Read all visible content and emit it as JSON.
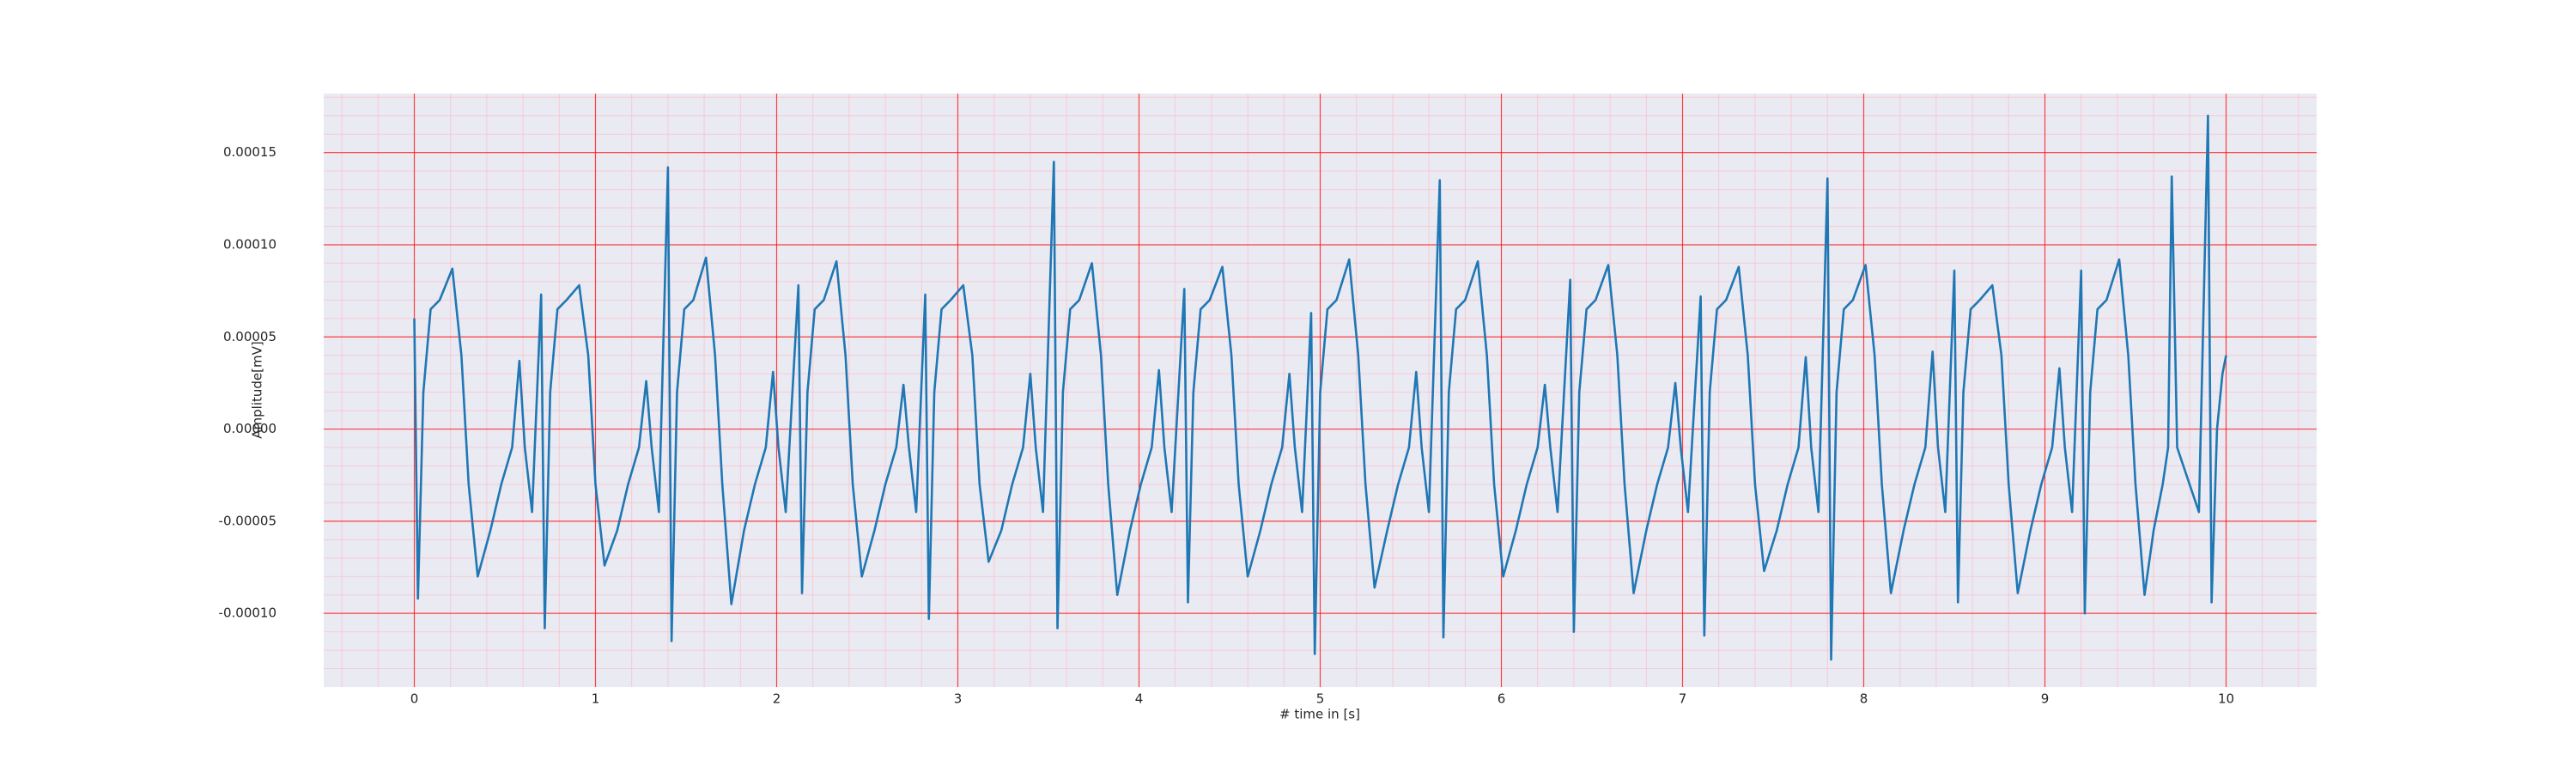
{
  "chart_data": {
    "type": "line",
    "xlabel": "# time in [s]",
    "ylabel": "Amplitude[mV]",
    "xlim": [
      -0.5,
      10.5
    ],
    "ylim": [
      -0.00014,
      0.000182
    ],
    "xticks": [
      0,
      1,
      2,
      3,
      4,
      5,
      6,
      7,
      8,
      9,
      10
    ],
    "yticks": [
      {
        "value": -0.0001,
        "label": "-0.00010"
      },
      {
        "value": -5e-05,
        "label": "-0.00005"
      },
      {
        "value": 0,
        "label": "0.00000"
      },
      {
        "value": 5e-05,
        "label": "0.00005"
      },
      {
        "value": 0.0001,
        "label": "0.00010"
      },
      {
        "value": 0.00015,
        "label": "0.00015"
      }
    ],
    "grid": true,
    "grid_color": "#ff0000",
    "minor_grid": true,
    "minor_grid_color": "#ffb6c1",
    "minor_xstep": 0.2,
    "minor_ystep": 1e-05,
    "background": "#eaeaf2",
    "series": [
      {
        "color": "#1f77b4",
        "x": [
          0,
          0.02,
          0.05,
          0.09,
          0.14,
          0.21,
          0.26,
          0.3,
          0.35,
          0.42,
          0.48,
          0.54,
          0.58,
          0.61,
          0.65,
          0.7,
          0.72,
          0.75,
          0.79,
          0.84,
          0.91,
          0.96,
          1.0,
          1.05,
          1.12,
          1.18,
          1.24,
          1.28,
          1.31,
          1.35,
          1.4,
          1.42,
          1.45,
          1.49,
          1.54,
          1.61,
          1.66,
          1.7,
          1.75,
          1.82,
          1.88,
          1.94,
          1.98,
          2.01,
          2.05,
          2.12,
          2.14,
          2.17,
          2.21,
          2.26,
          2.33,
          2.38,
          2.42,
          2.47,
          2.54,
          2.6,
          2.66,
          2.7,
          2.73,
          2.77,
          2.82,
          2.84,
          2.87,
          2.91,
          2.96,
          3.03,
          3.08,
          3.12,
          3.17,
          3.24,
          3.3,
          3.36,
          3.4,
          3.43,
          3.47,
          3.53,
          3.55,
          3.58,
          3.62,
          3.67,
          3.74,
          3.79,
          3.83,
          3.88,
          3.95,
          4.01,
          4.07,
          4.11,
          4.14,
          4.18,
          4.25,
          4.27,
          4.3,
          4.34,
          4.39,
          4.46,
          4.51,
          4.55,
          4.6,
          4.67,
          4.73,
          4.79,
          4.83,
          4.86,
          4.9,
          4.95,
          4.97,
          5.0,
          5.04,
          5.09,
          5.16,
          5.21,
          5.25,
          5.3,
          5.37,
          5.43,
          5.49,
          5.53,
          5.56,
          5.6,
          5.66,
          5.68,
          5.71,
          5.75,
          5.8,
          5.87,
          5.92,
          5.96,
          6.01,
          6.08,
          6.14,
          6.2,
          6.24,
          6.27,
          6.31,
          6.38,
          6.4,
          6.43,
          6.47,
          6.52,
          6.59,
          6.64,
          6.68,
          6.73,
          6.8,
          6.86,
          6.92,
          6.96,
          6.99,
          7.03,
          7.1,
          7.12,
          7.15,
          7.19,
          7.24,
          7.31,
          7.36,
          7.4,
          7.45,
          7.52,
          7.58,
          7.64,
          7.68,
          7.71,
          7.75,
          7.8,
          7.82,
          7.85,
          7.89,
          7.94,
          8.01,
          8.06,
          8.1,
          8.15,
          8.22,
          8.28,
          8.34,
          8.38,
          8.41,
          8.45,
          8.5,
          8.52,
          8.55,
          8.59,
          8.64,
          8.71,
          8.76,
          8.8,
          8.85,
          8.92,
          8.98,
          9.04,
          9.08,
          9.11,
          9.15,
          9.2,
          9.22,
          9.25,
          9.29,
          9.34,
          9.41,
          9.46,
          9.5,
          9.55,
          9.6,
          9.65,
          9.68,
          9.7,
          9.73,
          9.85,
          9.9,
          9.92,
          9.95,
          9.98,
          10.0
        ],
        "values": [
          6e-05,
          -9.2e-05,
          2e-05,
          6.5e-05,
          7e-05,
          8.7e-05,
          4e-05,
          -3e-05,
          -8e-05,
          -5.5e-05,
          -3e-05,
          -1e-05,
          3.7e-05,
          -1e-05,
          -4.5e-05,
          7.3e-05,
          -0.000108,
          2e-05,
          6.5e-05,
          7e-05,
          7.8e-05,
          4e-05,
          -3e-05,
          -7.4e-05,
          -5.5e-05,
          -3e-05,
          -1e-05,
          2.6e-05,
          -1e-05,
          -4.5e-05,
          0.000142,
          -0.000115,
          2e-05,
          6.5e-05,
          7e-05,
          9.3e-05,
          4e-05,
          -3e-05,
          -9.5e-05,
          -5.5e-05,
          -3e-05,
          -1e-05,
          3.1e-05,
          -1e-05,
          -4.5e-05,
          7.8e-05,
          -8.9e-05,
          2e-05,
          6.5e-05,
          7e-05,
          9.1e-05,
          4e-05,
          -3e-05,
          -8e-05,
          -5.5e-05,
          -3e-05,
          -1e-05,
          2.4e-05,
          -1e-05,
          -4.5e-05,
          7.3e-05,
          -0.000103,
          2e-05,
          6.5e-05,
          7e-05,
          7.8e-05,
          4e-05,
          -3e-05,
          -7.2e-05,
          -5.5e-05,
          -3e-05,
          -1e-05,
          3e-05,
          -1e-05,
          -4.5e-05,
          0.000145,
          -0.000108,
          2e-05,
          6.5e-05,
          7e-05,
          9e-05,
          4e-05,
          -3e-05,
          -9e-05,
          -5.5e-05,
          -3e-05,
          -1e-05,
          3.2e-05,
          -1e-05,
          -4.5e-05,
          7.6e-05,
          -9.4e-05,
          2e-05,
          6.5e-05,
          7e-05,
          8.8e-05,
          4e-05,
          -3e-05,
          -8e-05,
          -5.5e-05,
          -3e-05,
          -1e-05,
          3e-05,
          -1e-05,
          -4.5e-05,
          6.3e-05,
          -0.000122,
          2e-05,
          6.5e-05,
          7e-05,
          9.2e-05,
          4e-05,
          -3e-05,
          -8.6e-05,
          -5.5e-05,
          -3e-05,
          -1e-05,
          3.1e-05,
          -1e-05,
          -4.5e-05,
          0.000135,
          -0.000113,
          2e-05,
          6.5e-05,
          7e-05,
          9.1e-05,
          4e-05,
          -3e-05,
          -8e-05,
          -5.5e-05,
          -3e-05,
          -1e-05,
          2.4e-05,
          -1e-05,
          -4.5e-05,
          8.1e-05,
          -0.00011,
          2e-05,
          6.5e-05,
          7e-05,
          8.9e-05,
          4e-05,
          -3e-05,
          -8.9e-05,
          -5.5e-05,
          -3e-05,
          -1e-05,
          2.5e-05,
          -1e-05,
          -4.5e-05,
          7.2e-05,
          -0.000112,
          2e-05,
          6.5e-05,
          7e-05,
          8.8e-05,
          4e-05,
          -3e-05,
          -7.7e-05,
          -5.5e-05,
          -3e-05,
          -1e-05,
          3.9e-05,
          -1e-05,
          -4.5e-05,
          0.000136,
          -0.000125,
          2e-05,
          6.5e-05,
          7e-05,
          8.9e-05,
          4e-05,
          -3e-05,
          -8.9e-05,
          -5.5e-05,
          -3e-05,
          -1e-05,
          4.2e-05,
          -1e-05,
          -4.5e-05,
          8.6e-05,
          -9.4e-05,
          2e-05,
          6.5e-05,
          7e-05,
          7.8e-05,
          4e-05,
          -3e-05,
          -8.9e-05,
          -5.5e-05,
          -3e-05,
          -1e-05,
          3.3e-05,
          -1e-05,
          -4.5e-05,
          8.6e-05,
          -0.0001,
          2e-05,
          6.5e-05,
          7e-05,
          9.2e-05,
          4e-05,
          -3e-05,
          -9e-05,
          -5.5e-05,
          -3e-05,
          -1e-05,
          0.000137,
          -1e-05,
          -4.5e-05,
          0.00017,
          -9.4e-05,
          0,
          3e-05,
          4e-05
        ]
      }
    ]
  }
}
